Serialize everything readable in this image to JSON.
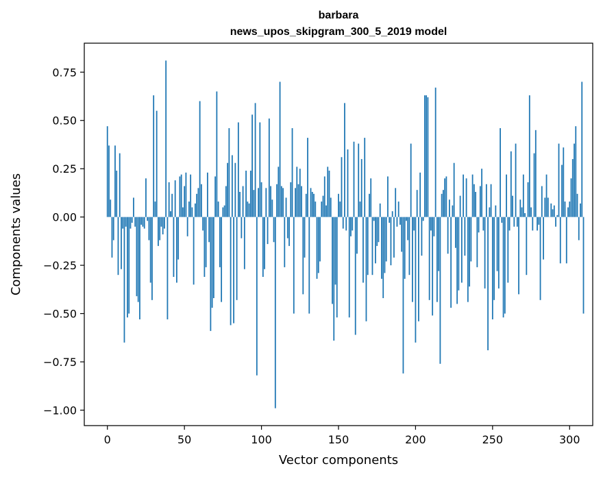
{
  "chart_data": {
    "type": "bar",
    "title": "barbara",
    "subtitle": "news_upos_skipgram_300_5_2019 model",
    "xlabel": "Vector components",
    "ylabel": "Components values",
    "xlim": [
      -15,
      315
    ],
    "ylim": [
      -1.08,
      0.9
    ],
    "xticks": [
      0,
      50,
      100,
      150,
      200,
      250,
      300
    ],
    "yticks": [
      -1.0,
      -0.75,
      -0.5,
      -0.25,
      0.0,
      0.25,
      0.5,
      0.75
    ],
    "xtick_labels": [
      "0",
      "50",
      "100",
      "150",
      "200",
      "250",
      "300"
    ],
    "ytick_labels": [
      "−1.00",
      "−0.75",
      "−0.50",
      "−0.25",
      "0.00",
      "0.25",
      "0.50",
      "0.75"
    ],
    "bar_color": "#1f77b4",
    "values": [
      0.47,
      0.37,
      0.09,
      -0.21,
      -0.12,
      0.37,
      0.24,
      -0.3,
      0.33,
      -0.27,
      -0.06,
      -0.65,
      -0.05,
      -0.52,
      -0.5,
      -0.06,
      -0.03,
      0.1,
      -0.05,
      -0.41,
      -0.44,
      -0.53,
      -0.04,
      -0.05,
      -0.06,
      0.2,
      -0.02,
      -0.12,
      -0.34,
      -0.43,
      0.63,
      0.08,
      0.55,
      -0.15,
      -0.12,
      -0.05,
      -0.09,
      -0.06,
      0.81,
      -0.53,
      0.18,
      0.03,
      0.12,
      -0.31,
      0.19,
      -0.34,
      -0.22,
      0.21,
      0.22,
      0.05,
      0.16,
      0.23,
      -0.1,
      0.08,
      0.22,
      0.05,
      -0.35,
      0.07,
      0.12,
      0.15,
      0.6,
      0.17,
      -0.07,
      -0.31,
      -0.26,
      0.23,
      -0.13,
      -0.59,
      -0.47,
      -0.42,
      0.21,
      0.65,
      0.08,
      -0.26,
      -0.44,
      0.05,
      0.06,
      0.16,
      0.28,
      0.46,
      -0.56,
      0.32,
      -0.55,
      0.28,
      -0.43,
      0.49,
      0.13,
      -0.11,
      0.16,
      -0.27,
      0.24,
      0.08,
      0.07,
      0.24,
      0.53,
      0.14,
      0.59,
      -0.82,
      0.15,
      0.49,
      0.18,
      -0.31,
      -0.27,
      0.15,
      -0.14,
      0.51,
      0.16,
      0.09,
      -0.13,
      -0.99,
      0.17,
      0.26,
      0.7,
      0.16,
      0.15,
      -0.26,
      0.1,
      -0.11,
      -0.15,
      0.18,
      0.46,
      -0.5,
      0.15,
      0.26,
      0.17,
      0.25,
      0.16,
      -0.4,
      -0.21,
      0.12,
      0.41,
      -0.5,
      0.15,
      0.13,
      0.12,
      0.08,
      -0.32,
      -0.29,
      -0.23,
      0.08,
      0.11,
      0.21,
      0.06,
      0.26,
      0.24,
      0.1,
      -0.45,
      -0.64,
      -0.35,
      -0.52,
      0.12,
      0.08,
      0.31,
      -0.06,
      0.59,
      -0.07,
      0.35,
      -0.52,
      -0.1,
      -0.07,
      0.39,
      -0.61,
      -0.19,
      0.38,
      0.08,
      0.3,
      -0.34,
      0.41,
      -0.54,
      -0.3,
      0.12,
      0.2,
      -0.3,
      -0.02,
      -0.24,
      -0.15,
      -0.13,
      0.07,
      -0.32,
      -0.42,
      -0.29,
      -0.23,
      0.21,
      -0.03,
      -0.25,
      0.03,
      -0.21,
      0.15,
      -0.05,
      0.08,
      -0.04,
      -0.18,
      -0.81,
      -0.32,
      -0.02,
      -0.12,
      -0.3,
      0.38,
      -0.44,
      -0.07,
      -0.65,
      0.14,
      -0.54,
      0.23,
      -0.2,
      -0.02,
      0.63,
      0.63,
      0.62,
      -0.43,
      -0.07,
      -0.51,
      -0.1,
      0.67,
      -0.44,
      -0.28,
      -0.76,
      0.12,
      0.14,
      0.2,
      0.21,
      -0.19,
      0.09,
      -0.47,
      0.06,
      0.28,
      -0.16,
      -0.45,
      -0.38,
      0.11,
      -0.34,
      0.22,
      -0.2,
      0.2,
      -0.44,
      -0.36,
      -0.23,
      0.22,
      0.17,
      0.13,
      -0.26,
      -0.08,
      0.16,
      0.25,
      -0.07,
      -0.37,
      0.17,
      -0.69,
      0.05,
      0.17,
      -0.53,
      -0.43,
      0.06,
      -0.28,
      -0.37,
      0.46,
      -0.03,
      -0.52,
      -0.5,
      0.22,
      -0.34,
      -0.07,
      0.34,
      0.11,
      -0.05,
      0.38,
      -0.05,
      -0.4,
      0.09,
      0.05,
      0.22,
      0.02,
      -0.3,
      0.18,
      0.63,
      0.05,
      -0.07,
      0.33,
      0.45,
      -0.07,
      -0.04,
      -0.43,
      0.16,
      -0.22,
      0.1,
      0.22,
      0.1,
      0.0,
      0.07,
      0.04,
      0.06,
      -0.05,
      0.01,
      0.38,
      -0.24,
      0.27,
      0.36,
      0.08,
      -0.24,
      0.05,
      0.08,
      0.2,
      0.3,
      0.38,
      0.47,
      0.12,
      -0.12,
      0.07,
      0.7,
      -0.5
    ]
  }
}
